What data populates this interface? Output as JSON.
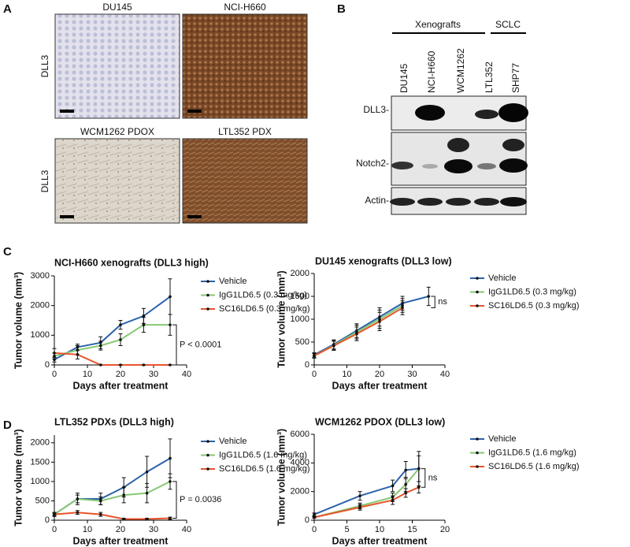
{
  "panel_labels": [
    "A",
    "B",
    "C",
    "D"
  ],
  "panel_a": {
    "images": [
      "DU145",
      "NCI-H660",
      "WCM1262 PDOX",
      "LTL352 PDX"
    ],
    "row_labels": [
      "DLL3",
      "DLL3"
    ]
  },
  "panel_b": {
    "groups": [
      "Xenografts",
      "SCLC"
    ],
    "lanes": [
      "DU145",
      "NCI-H660",
      "WCM1262",
      "LTL352",
      "SHP77"
    ],
    "rows": [
      "DLL3-",
      "Notch2-",
      "Actin-"
    ]
  },
  "chart_data": [
    {
      "type": "line",
      "title": "NCI-H660 xenografts (DLL3 high)",
      "x_label": "Days after treatment",
      "y_label": "Tumor volume (mm³)",
      "x": [
        0,
        7,
        14,
        20,
        27,
        35
      ],
      "xlim": [
        0,
        40
      ],
      "xticks": [
        0,
        10,
        20,
        30,
        40
      ],
      "ylim": [
        0,
        3000
      ],
      "yticks": [
        0,
        1000,
        2000,
        3000
      ],
      "series": [
        {
          "name": "Vehicle",
          "color": "#2b62ab",
          "values": [
            180,
            600,
            750,
            1350,
            1650,
            2300
          ],
          "errors": [
            80,
            100,
            200,
            150,
            250,
            600
          ]
        },
        {
          "name": "IgG1LD6.5 (0.3 mg/kg)",
          "color": "#86c874",
          "values": [
            300,
            500,
            650,
            850,
            1350,
            1350
          ],
          "errors": [
            100,
            150,
            150,
            200,
            250,
            350
          ]
        },
        {
          "name": "SC16LD6.5 (0.3 mg/kg)",
          "color": "#e8542b",
          "values": [
            400,
            350,
            0,
            0,
            0,
            0
          ],
          "errors": [
            150,
            150,
            0,
            0,
            0,
            0
          ]
        }
      ],
      "annotation": "P < 0.0001"
    },
    {
      "type": "line",
      "title": "DU145 xenografts (DLL3 low)",
      "x_label": "Days after treatment",
      "y_label": "Tumor volume (mm³)",
      "x": [
        0,
        6,
        13,
        20,
        27,
        35
      ],
      "xlim": [
        0,
        40
      ],
      "xticks": [
        0,
        10,
        20,
        30,
        40
      ],
      "ylim": [
        0,
        2000
      ],
      "yticks": [
        0,
        500,
        1000,
        1500,
        2000
      ],
      "series": [
        {
          "name": "Vehicle",
          "color": "#2b62ab",
          "values": [
            220,
            450,
            750,
            1050,
            1350,
            1500
          ],
          "errors": [
            50,
            100,
            150,
            200,
            150,
            200
          ]
        },
        {
          "name": "IgG1LD6.5 (0.3 mg/kg)",
          "color": "#86c874",
          "values": [
            200,
            430,
            720,
            1000,
            1300,
            null
          ],
          "errors": [
            50,
            100,
            150,
            200,
            150,
            null
          ]
        },
        {
          "name": "SC16LD6.5 (0.3 mg/kg)",
          "color": "#e8542b",
          "values": [
            200,
            420,
            680,
            950,
            1250,
            null
          ],
          "errors": [
            50,
            100,
            150,
            200,
            150,
            null
          ]
        }
      ],
      "annotation": "ns"
    },
    {
      "type": "line",
      "title": "LTL352 PDXs (DLL3 high)",
      "x_label": "Days after treatment",
      "y_label": "Tumor volume (mm³)",
      "x": [
        0,
        7,
        14,
        21,
        28,
        35
      ],
      "xlim": [
        0,
        40
      ],
      "xticks": [
        0,
        10,
        20,
        30,
        40
      ],
      "ylim": [
        0,
        2200
      ],
      "yticks": [
        0,
        500,
        1000,
        1500,
        2000
      ],
      "series": [
        {
          "name": "Vehicle",
          "color": "#2b62ab",
          "values": [
            150,
            550,
            550,
            850,
            1250,
            1600
          ],
          "errors": [
            50,
            150,
            150,
            250,
            400,
            500
          ]
        },
        {
          "name": "IgG1LD6.5 (1.6 mg/kg)",
          "color": "#86c874",
          "values": [
            150,
            550,
            500,
            650,
            700,
            1000
          ],
          "errors": [
            50,
            100,
            100,
            200,
            250,
            200
          ]
        },
        {
          "name": "SC16LD6.5 (1.6 mg/kg)",
          "color": "#e8542b",
          "values": [
            150,
            200,
            150,
            30,
            30,
            50
          ],
          "errors": [
            30,
            50,
            50,
            20,
            20,
            30
          ]
        }
      ],
      "annotation": "P = 0.0036"
    },
    {
      "type": "line",
      "title": "WCM1262 PDOX (DLL3 low)",
      "x_label": "Days after treatment",
      "y_label": "Tumor volume (mm³)",
      "x": [
        0,
        7,
        12,
        14,
        16
      ],
      "xlim": [
        0,
        20
      ],
      "xticks": [
        0,
        5,
        10,
        15,
        20
      ],
      "ylim": [
        0,
        6000
      ],
      "yticks": [
        0,
        2000,
        4000,
        6000
      ],
      "series": [
        {
          "name": "Vehicle",
          "color": "#2b62ab",
          "values": [
            400,
            1700,
            2400,
            3500,
            3600
          ],
          "errors": [
            100,
            300,
            400,
            600,
            1200
          ]
        },
        {
          "name": "IgG1LD6.5 (1.6 mg/kg)",
          "color": "#86c874",
          "values": [
            200,
            1000,
            1600,
            2500,
            3600
          ],
          "errors": [
            50,
            200,
            300,
            500,
            900
          ]
        },
        {
          "name": "SC16LD6.5 (1.6 mg/kg)",
          "color": "#e8542b",
          "values": [
            200,
            900,
            1400,
            1900,
            2300
          ],
          "errors": [
            50,
            200,
            300,
            300,
            400
          ]
        }
      ],
      "annotation": "ns"
    }
  ]
}
